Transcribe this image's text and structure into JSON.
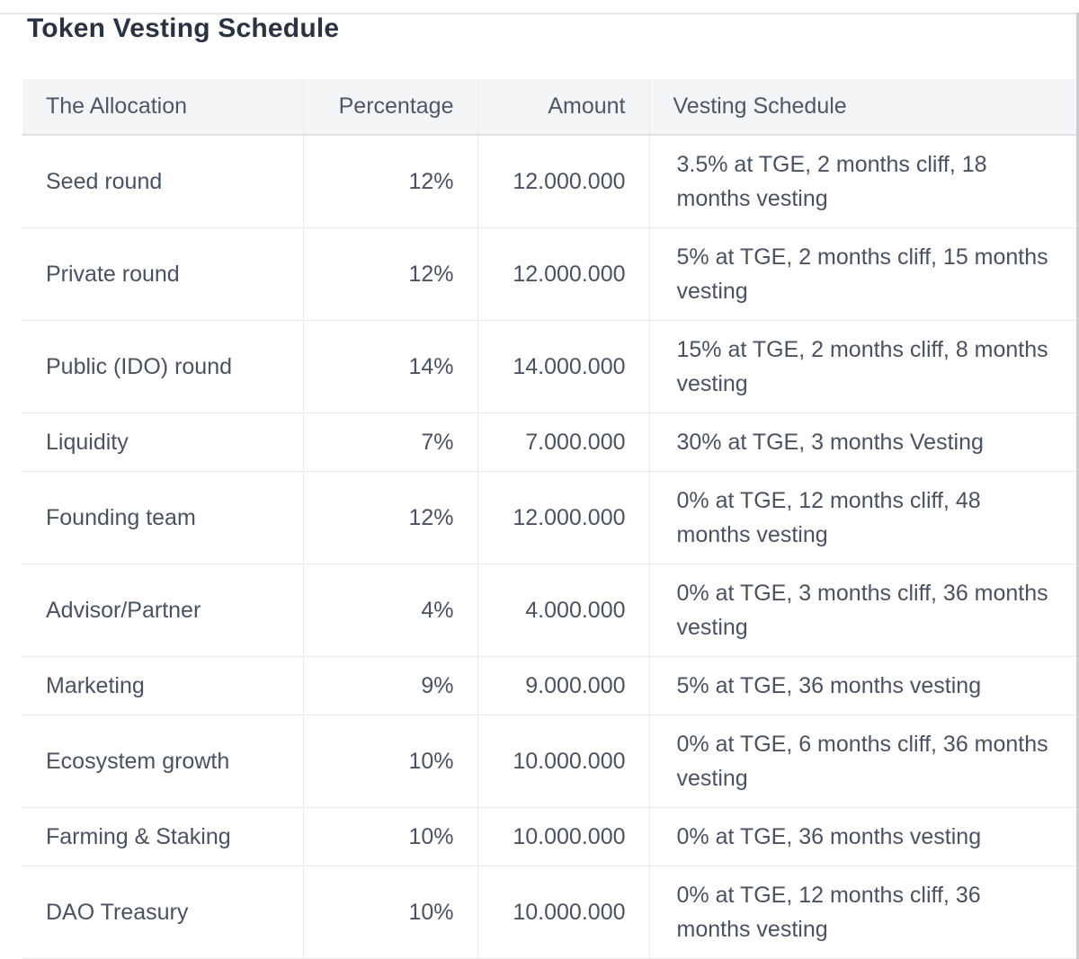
{
  "page": {
    "title": "Token Vesting Schedule"
  },
  "colors": {
    "header_bg": "#f4f5f7",
    "row_border": "#e9ebee",
    "header_bottom_border": "#dee1e6",
    "body_text": "#4a5260",
    "header_text": "#4d5766",
    "title_text": "#2a3342",
    "right_edge_line": "#c9cdd3"
  },
  "table": {
    "columns": [
      {
        "label": "The Allocation",
        "align": "left"
      },
      {
        "label": "Percentage",
        "align": "right"
      },
      {
        "label": "Amount",
        "align": "right"
      },
      {
        "label": "Vesting Schedule",
        "align": "left"
      }
    ],
    "rows": [
      {
        "allocation": "Seed round",
        "percentage": "12%",
        "amount": "12.000.000",
        "vesting": "3.5% at TGE, 2 months cliff, 18 months vesting"
      },
      {
        "allocation": "Private round",
        "percentage": "12%",
        "amount": "12.000.000",
        "vesting": "5% at TGE, 2 months cliff, 15 months vesting"
      },
      {
        "allocation": "Public (IDO) round",
        "percentage": "14%",
        "amount": "14.000.000",
        "vesting": "15% at TGE, 2 months cliff, 8 months vesting"
      },
      {
        "allocation": "Liquidity",
        "percentage": "7%",
        "amount": "7.000.000",
        "vesting": "30% at TGE, 3 months Vesting"
      },
      {
        "allocation": "Founding team",
        "percentage": "12%",
        "amount": "12.000.000",
        "vesting": "0% at TGE, 12 months cliff, 48 months vesting"
      },
      {
        "allocation": "Advisor/Partner",
        "percentage": "4%",
        "amount": "4.000.000",
        "vesting": "0% at TGE, 3 months cliff, 36 months vesting"
      },
      {
        "allocation": "Marketing",
        "percentage": "9%",
        "amount": "9.000.000",
        "vesting": "5% at TGE, 36 months vesting"
      },
      {
        "allocation": "Ecosystem growth",
        "percentage": "10%",
        "amount": "10.000.000",
        "vesting": "0% at TGE, 6 months cliff, 36 months vesting"
      },
      {
        "allocation": "Farming & Staking",
        "percentage": "10%",
        "amount": "10.000.000",
        "vesting": "0% at TGE, 36 months vesting"
      },
      {
        "allocation": "DAO Treasury",
        "percentage": "10%",
        "amount": "10.000.000",
        "vesting": "0% at TGE, 12 months cliff, 36 months vesting"
      }
    ]
  }
}
